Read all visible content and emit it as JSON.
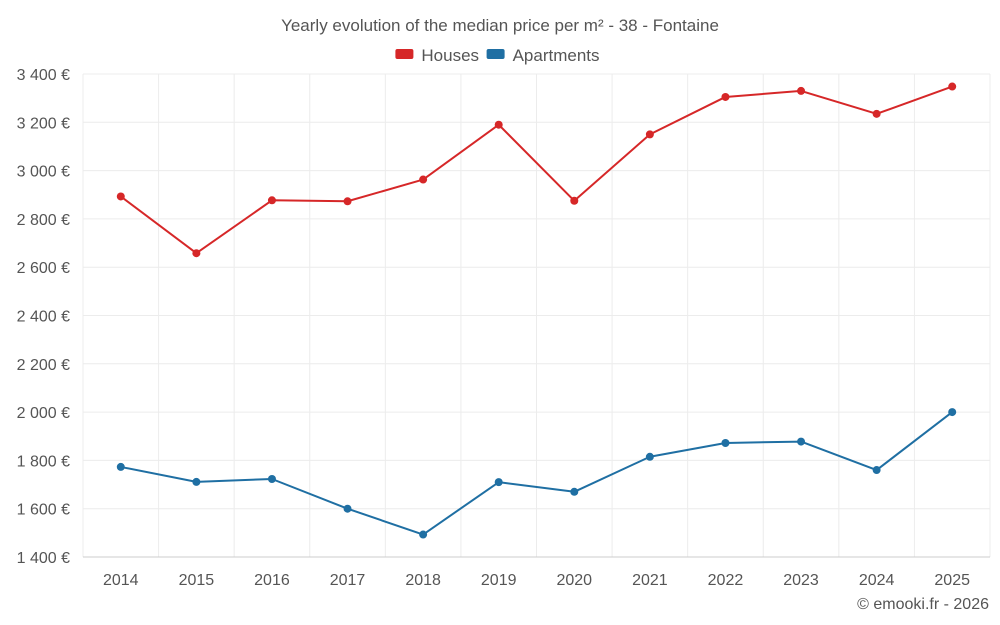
{
  "chart_data": {
    "type": "line",
    "title": "Yearly evolution of the median price per m² - 38 - Fontaine",
    "categories": [
      "2014",
      "2015",
      "2016",
      "2017",
      "2018",
      "2019",
      "2020",
      "2021",
      "2022",
      "2023",
      "2024",
      "2025"
    ],
    "ylim": [
      1400,
      3400
    ],
    "yticks": [
      1400,
      1600,
      1800,
      2000,
      2200,
      2400,
      2600,
      2800,
      3000,
      3200,
      3400
    ],
    "ytick_labels": [
      "1 400 €",
      "1 600 €",
      "1 800 €",
      "2 000 €",
      "2 200 €",
      "2 400 €",
      "2 600 €",
      "2 800 €",
      "3 000 €",
      "3 200 €",
      "3 400 €"
    ],
    "grid": true,
    "legend_position": "top-center",
    "series": [
      {
        "name": "Houses",
        "color": "#d62728",
        "values": [
          2893,
          2658,
          2877,
          2873,
          2963,
          3190,
          2875,
          3150,
          3305,
          3330,
          3235,
          3348
        ]
      },
      {
        "name": "Apartments",
        "color": "#1f6fa3",
        "values": [
          1773,
          1711,
          1723,
          1600,
          1493,
          1710,
          1670,
          1815,
          1872,
          1878,
          1760,
          2000
        ]
      }
    ]
  },
  "credit": "© emooki.fr - 2026"
}
